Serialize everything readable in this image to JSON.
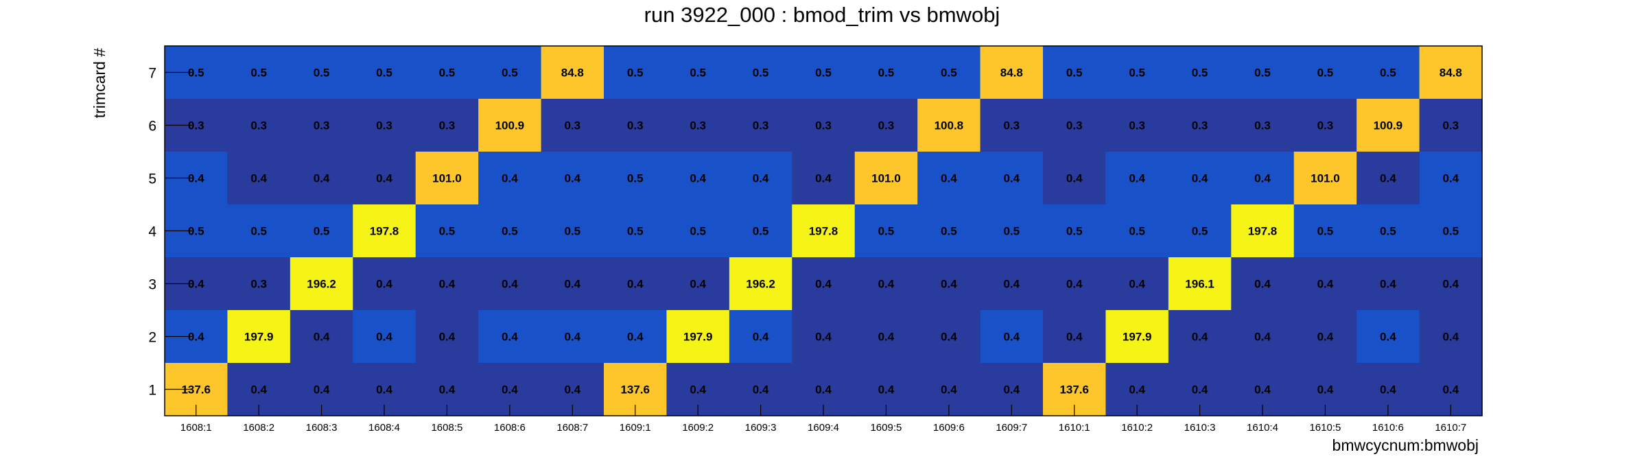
{
  "chart_data": {
    "type": "heatmap",
    "title": "run 3922_000 : bmod_trim vs bmwobj",
    "xlabel": "bmwcycnum:bmwobj",
    "ylabel": "trimcard #",
    "x_categories": [
      "1608:1",
      "1608:2",
      "1608:3",
      "1608:4",
      "1608:5",
      "1608:6",
      "1608:7",
      "1609:1",
      "1609:2",
      "1609:3",
      "1609:4",
      "1609:5",
      "1609:6",
      "1609:7",
      "1610:1",
      "1610:2",
      "1610:3",
      "1610:4",
      "1610:5",
      "1610:6",
      "1610:7"
    ],
    "y_categories": [
      "1",
      "2",
      "3",
      "4",
      "5",
      "6",
      "7"
    ],
    "rows": [
      {
        "y": "7",
        "labels": [
          "0.5",
          "0.5",
          "0.5",
          "0.5",
          "0.5",
          "0.5",
          "84.8",
          "0.5",
          "0.5",
          "0.5",
          "0.5",
          "0.5",
          "0.5",
          "84.8",
          "0.5",
          "0.5",
          "0.5",
          "0.5",
          "0.5",
          "0.5",
          "84.8"
        ],
        "colors": [
          "#1951c8",
          "#1951c8",
          "#1951c8",
          "#1951c8",
          "#1951c8",
          "#1951c8",
          "#fdc62a",
          "#1951c8",
          "#1951c8",
          "#1951c8",
          "#1951c8",
          "#1951c8",
          "#1951c8",
          "#fdc62a",
          "#1951c8",
          "#1951c8",
          "#1951c8",
          "#1951c8",
          "#1951c8",
          "#1951c8",
          "#fdc62a"
        ]
      },
      {
        "y": "6",
        "labels": [
          "0.3",
          "0.3",
          "0.3",
          "0.3",
          "0.3",
          "100.9",
          "0.3",
          "0.3",
          "0.3",
          "0.3",
          "0.3",
          "0.3",
          "100.8",
          "0.3",
          "0.3",
          "0.3",
          "0.3",
          "0.3",
          "0.3",
          "100.9",
          "0.3"
        ],
        "colors": [
          "#2a3b9e",
          "#2a3b9e",
          "#2a3b9e",
          "#2a3b9e",
          "#2a3b9e",
          "#fdc62a",
          "#2a3b9e",
          "#2a3b9e",
          "#2a3b9e",
          "#2a3b9e",
          "#2a3b9e",
          "#2a3b9e",
          "#fdc62a",
          "#2a3b9e",
          "#2a3b9e",
          "#2a3b9e",
          "#2a3b9e",
          "#2a3b9e",
          "#2a3b9e",
          "#fdc62a",
          "#2a3b9e"
        ]
      },
      {
        "y": "5",
        "labels": [
          "0.4",
          "0.4",
          "0.4",
          "0.4",
          "101.0",
          "0.4",
          "0.4",
          "0.5",
          "0.4",
          "0.4",
          "0.4",
          "101.0",
          "0.4",
          "0.4",
          "0.4",
          "0.4",
          "0.4",
          "0.4",
          "101.0",
          "0.4",
          "0.4"
        ],
        "colors": [
          "#1951c8",
          "#2a3b9e",
          "#2a3b9e",
          "#2a3b9e",
          "#fdc62a",
          "#1951c8",
          "#1951c8",
          "#1951c8",
          "#1951c8",
          "#1951c8",
          "#2a3b9e",
          "#fdc62a",
          "#1951c8",
          "#1951c8",
          "#2a3b9e",
          "#1951c8",
          "#1951c8",
          "#1951c8",
          "#fdc62a",
          "#2a3b9e",
          "#1951c8"
        ]
      },
      {
        "y": "4",
        "labels": [
          "0.5",
          "0.5",
          "0.5",
          "197.8",
          "0.5",
          "0.5",
          "0.5",
          "0.5",
          "0.5",
          "0.5",
          "197.8",
          "0.5",
          "0.5",
          "0.5",
          "0.5",
          "0.5",
          "0.5",
          "197.8",
          "0.5",
          "0.5",
          "0.5"
        ],
        "colors": [
          "#1951c8",
          "#1951c8",
          "#1951c8",
          "#f5f416",
          "#1951c8",
          "#1951c8",
          "#1951c8",
          "#1951c8",
          "#1951c8",
          "#1951c8",
          "#f5f416",
          "#1951c8",
          "#1951c8",
          "#1951c8",
          "#1951c8",
          "#1951c8",
          "#1951c8",
          "#f5f416",
          "#1951c8",
          "#1951c8",
          "#1951c8"
        ]
      },
      {
        "y": "3",
        "labels": [
          "0.4",
          "0.3",
          "196.2",
          "0.4",
          "0.4",
          "0.4",
          "0.4",
          "0.4",
          "0.4",
          "196.2",
          "0.4",
          "0.4",
          "0.4",
          "0.4",
          "0.4",
          "0.4",
          "196.1",
          "0.4",
          "0.4",
          "0.4",
          "0.4"
        ],
        "colors": [
          "#2a3b9e",
          "#2a3b9e",
          "#f5f416",
          "#2a3b9e",
          "#2a3b9e",
          "#2a3b9e",
          "#2a3b9e",
          "#2a3b9e",
          "#2a3b9e",
          "#f5f416",
          "#2a3b9e",
          "#2a3b9e",
          "#2a3b9e",
          "#2a3b9e",
          "#2a3b9e",
          "#2a3b9e",
          "#f5f416",
          "#2a3b9e",
          "#2a3b9e",
          "#2a3b9e",
          "#2a3b9e"
        ]
      },
      {
        "y": "2",
        "labels": [
          "0.4",
          "197.9",
          "0.4",
          "0.4",
          "0.4",
          "0.4",
          "0.4",
          "0.4",
          "197.9",
          "0.4",
          "0.4",
          "0.4",
          "0.4",
          "0.4",
          "0.4",
          "197.9",
          "0.4",
          "0.4",
          "0.4",
          "0.4",
          "0.4"
        ],
        "colors": [
          "#1951c8",
          "#f5f416",
          "#2a3b9e",
          "#1951c8",
          "#2a3b9e",
          "#1951c8",
          "#1951c8",
          "#1951c8",
          "#f5f416",
          "#1951c8",
          "#2a3b9e",
          "#2a3b9e",
          "#2a3b9e",
          "#1951c8",
          "#2a3b9e",
          "#f5f416",
          "#2a3b9e",
          "#2a3b9e",
          "#2a3b9e",
          "#1951c8",
          "#2a3b9e"
        ]
      },
      {
        "y": "1",
        "labels": [
          "137.6",
          "0.4",
          "0.4",
          "0.4",
          "0.4",
          "0.4",
          "0.4",
          "137.6",
          "0.4",
          "0.4",
          "0.4",
          "0.4",
          "0.4",
          "0.4",
          "137.6",
          "0.4",
          "0.4",
          "0.4",
          "0.4",
          "0.4",
          "0.4"
        ],
        "colors": [
          "#fdc62a",
          "#2a3b9e",
          "#2a3b9e",
          "#2a3b9e",
          "#2a3b9e",
          "#2a3b9e",
          "#2a3b9e",
          "#fdc62a",
          "#2a3b9e",
          "#2a3b9e",
          "#2a3b9e",
          "#2a3b9e",
          "#2a3b9e",
          "#2a3b9e",
          "#fdc62a",
          "#2a3b9e",
          "#2a3b9e",
          "#2a3b9e",
          "#2a3b9e",
          "#2a3b9e",
          "#2a3b9e"
        ]
      }
    ]
  }
}
